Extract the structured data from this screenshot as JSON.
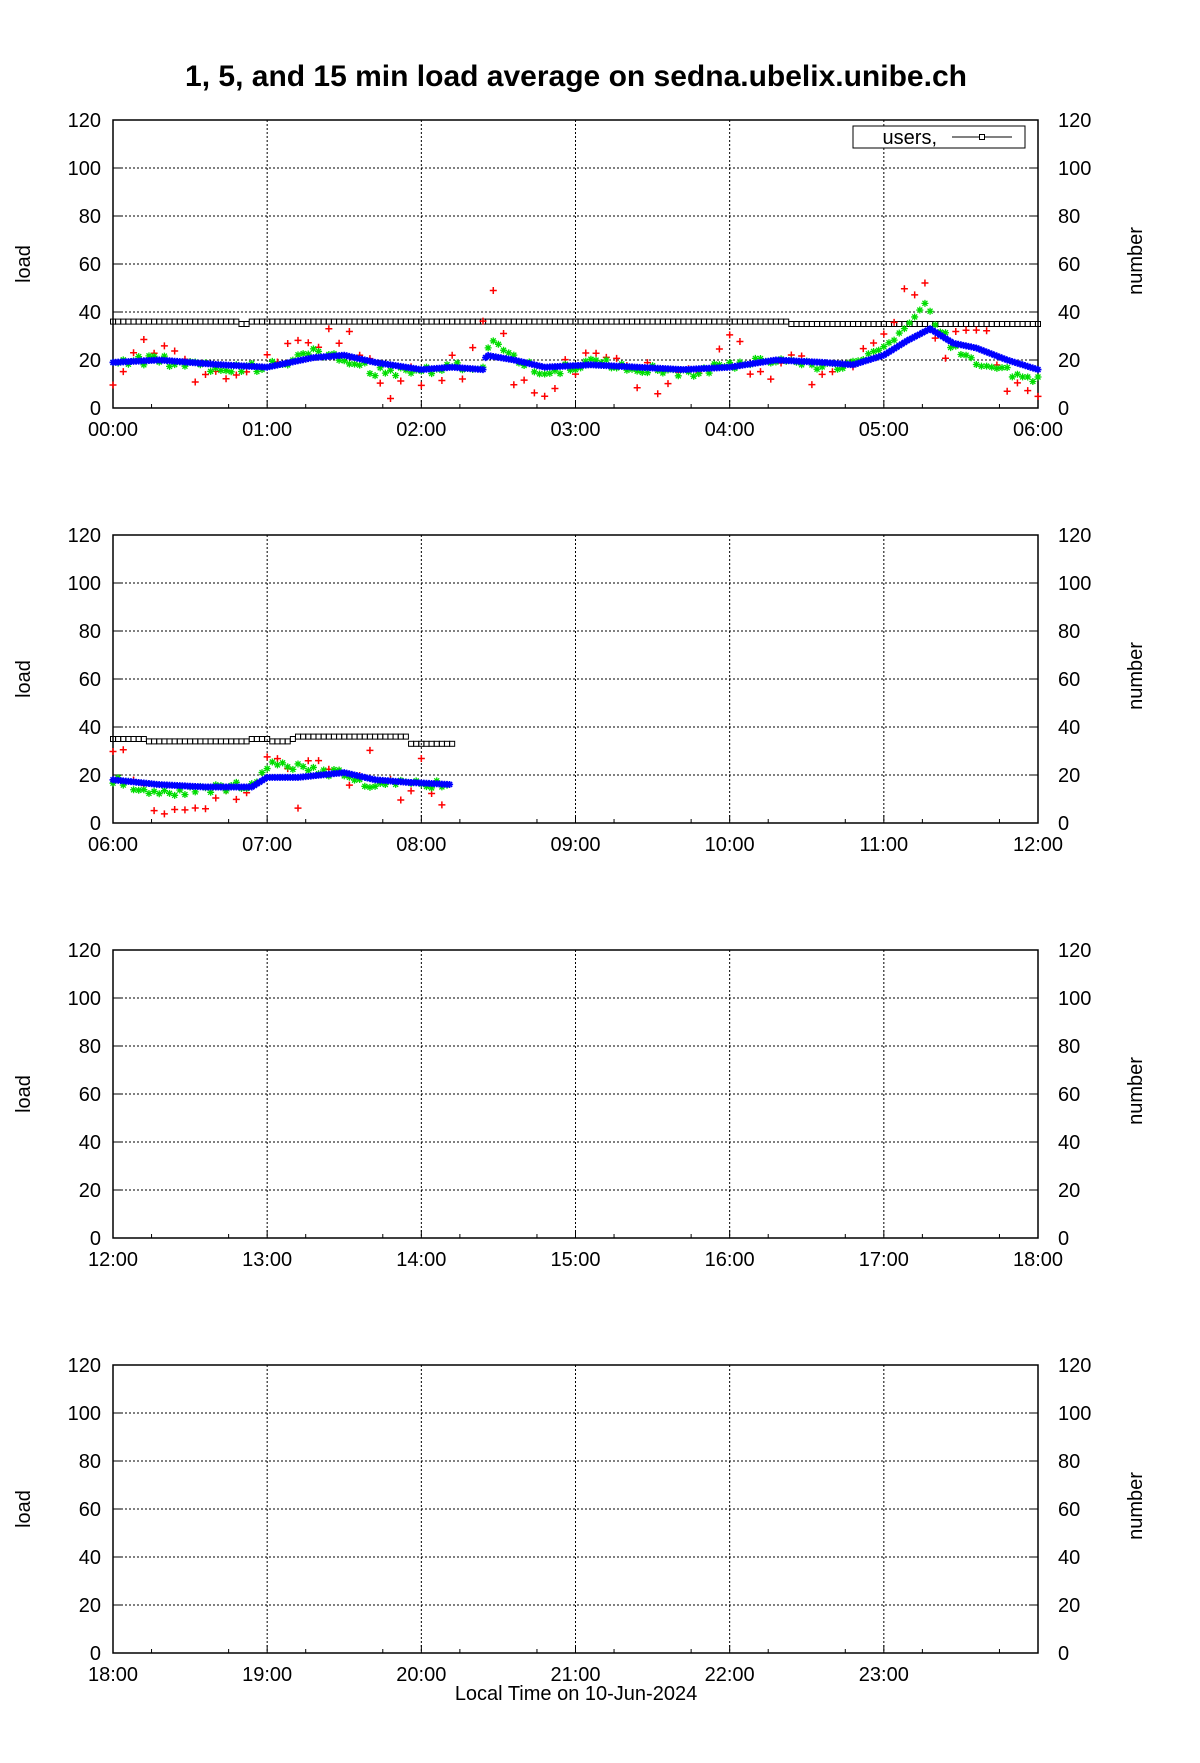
{
  "chart_data": {
    "type": "scatter",
    "title": "1, 5, and 15 min load average on sedna.ubelix.unibe.ch",
    "xlabel": "Local Time on 10-Jun-2024",
    "ylabel_left": "load",
    "ylabel_right": "number",
    "ylim": [
      0,
      120
    ],
    "y_ticks": [
      "0",
      "20",
      "40",
      "60",
      "80",
      "100",
      "120"
    ],
    "grid": true,
    "legend": {
      "placement": "top-right",
      "entries": [
        "users,"
      ]
    },
    "colors": {
      "load_1min": "#ff0000",
      "load_5min": "#00dd00",
      "load_15min": "#0000ff",
      "users": "#000000"
    },
    "panels": [
      {
        "x_ticks": [
          "00:00",
          "01:00",
          "02:00",
          "03:00",
          "04:00",
          "05:00",
          "06:00"
        ],
        "users": [
          [
            0.0,
            36
          ],
          [
            0.83,
            35
          ],
          [
            0.9,
            36
          ],
          [
            4.38,
            35
          ],
          [
            6.0,
            35
          ]
        ],
        "load_15min": [
          [
            0.0,
            19
          ],
          [
            0.3,
            20
          ],
          [
            0.7,
            18
          ],
          [
            1.0,
            17
          ],
          [
            1.3,
            21
          ],
          [
            1.5,
            22
          ],
          [
            1.7,
            19
          ],
          [
            2.0,
            16
          ],
          [
            2.2,
            17
          ],
          [
            2.4,
            16
          ],
          [
            2.42,
            22
          ],
          [
            2.6,
            20
          ],
          [
            2.8,
            17
          ],
          [
            3.1,
            18
          ],
          [
            3.4,
            17
          ],
          [
            3.7,
            16
          ],
          [
            4.0,
            17
          ],
          [
            4.3,
            20
          ],
          [
            4.6,
            19
          ],
          [
            4.8,
            18
          ],
          [
            5.0,
            22
          ],
          [
            5.15,
            28
          ],
          [
            5.3,
            33
          ],
          [
            5.45,
            27
          ],
          [
            5.6,
            25
          ],
          [
            5.8,
            20
          ],
          [
            6.0,
            16
          ]
        ],
        "load_5min": [
          [
            0.0,
            19
          ],
          [
            0.3,
            20
          ],
          [
            0.7,
            16
          ],
          [
            1.0,
            17
          ],
          [
            1.3,
            23
          ],
          [
            1.5,
            21
          ],
          [
            1.7,
            15
          ],
          [
            2.0,
            15
          ],
          [
            2.2,
            18
          ],
          [
            2.4,
            16
          ],
          [
            2.45,
            30
          ],
          [
            2.6,
            22
          ],
          [
            2.8,
            14
          ],
          [
            3.1,
            19
          ],
          [
            3.4,
            17
          ],
          [
            3.7,
            14
          ],
          [
            4.0,
            18
          ],
          [
            4.3,
            21
          ],
          [
            4.6,
            17
          ],
          [
            4.8,
            18
          ],
          [
            5.0,
            26
          ],
          [
            5.15,
            34
          ],
          [
            5.25,
            44
          ],
          [
            5.45,
            25
          ],
          [
            5.6,
            20
          ],
          [
            5.8,
            15
          ],
          [
            6.0,
            12
          ]
        ],
        "load_1min": [
          [
            0.0,
            14
          ],
          [
            0.2,
            27
          ],
          [
            0.5,
            13
          ],
          [
            0.7,
            11
          ],
          [
            1.0,
            22
          ],
          [
            1.3,
            32
          ],
          [
            1.6,
            24
          ],
          [
            1.8,
            10
          ],
          [
            2.1,
            13
          ],
          [
            2.3,
            20
          ],
          [
            2.43,
            49
          ],
          [
            2.44,
            59
          ],
          [
            2.6,
            12
          ],
          [
            2.8,
            10
          ],
          [
            3.1,
            22
          ],
          [
            3.4,
            14
          ],
          [
            3.7,
            10
          ],
          [
            4.0,
            24
          ],
          [
            4.2,
            15
          ],
          [
            4.4,
            27
          ],
          [
            4.6,
            10
          ],
          [
            4.8,
            20
          ],
          [
            5.0,
            30
          ],
          [
            5.15,
            45
          ],
          [
            5.22,
            54
          ],
          [
            5.4,
            23
          ],
          [
            5.6,
            38
          ],
          [
            5.8,
            12
          ],
          [
            6.0,
            8
          ]
        ]
      },
      {
        "x_ticks": [
          "06:00",
          "07:00",
          "08:00",
          "09:00",
          "10:00",
          "11:00",
          "12:00"
        ],
        "users": [
          [
            6.0,
            35
          ],
          [
            6.2,
            34
          ],
          [
            6.88,
            35
          ],
          [
            7.0,
            34
          ],
          [
            7.15,
            35
          ],
          [
            7.17,
            36
          ],
          [
            7.93,
            33
          ],
          [
            8.2,
            33
          ]
        ],
        "load_15min": [
          [
            6.0,
            18
          ],
          [
            6.3,
            16
          ],
          [
            6.6,
            15
          ],
          [
            6.9,
            15
          ],
          [
            7.0,
            19
          ],
          [
            7.2,
            19
          ],
          [
            7.5,
            21
          ],
          [
            7.7,
            18
          ],
          [
            7.9,
            17
          ],
          [
            8.2,
            16
          ]
        ],
        "load_5min": [
          [
            6.0,
            18
          ],
          [
            6.3,
            13
          ],
          [
            6.6,
            14
          ],
          [
            6.9,
            16
          ],
          [
            7.0,
            24
          ],
          [
            7.3,
            23
          ],
          [
            7.5,
            20
          ],
          [
            7.7,
            14
          ],
          [
            7.9,
            18
          ],
          [
            8.2,
            15
          ]
        ],
        "load_1min": [
          [
            6.0,
            33
          ],
          [
            6.15,
            18
          ],
          [
            6.3,
            9
          ],
          [
            6.5,
            12
          ],
          [
            6.7,
            7
          ],
          [
            6.9,
            20
          ],
          [
            7.0,
            28
          ],
          [
            7.2,
            10
          ],
          [
            7.3,
            30
          ],
          [
            7.5,
            13
          ],
          [
            7.7,
            27
          ],
          [
            7.9,
            8
          ],
          [
            8.0,
            24
          ],
          [
            8.2,
            6
          ]
        ]
      },
      {
        "x_ticks": [
          "12:00",
          "13:00",
          "14:00",
          "15:00",
          "16:00",
          "17:00",
          "18:00"
        ],
        "users": [],
        "load_15min": [],
        "load_5min": [],
        "load_1min": []
      },
      {
        "x_ticks": [
          "18:00",
          "19:00",
          "20:00",
          "21:00",
          "22:00",
          "23:00"
        ],
        "users": [],
        "load_15min": [],
        "load_5min": [],
        "load_1min": []
      }
    ]
  }
}
